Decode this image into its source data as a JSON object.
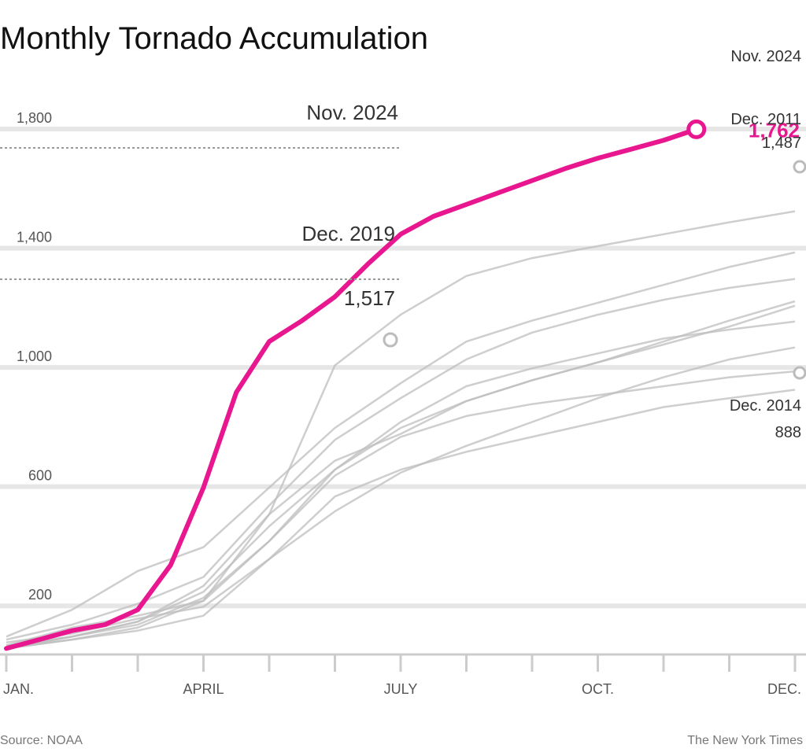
{
  "chart_data": {
    "type": "line",
    "title": "Monthly Tornado Accumulation",
    "xlabel": "",
    "ylabel": "",
    "xlim": [
      0,
      12
    ],
    "ylim": [
      0,
      1800
    ],
    "x_ticks": [
      {
        "value": 0,
        "label": "JAN."
      },
      {
        "value": 3,
        "label": "APRIL"
      },
      {
        "value": 6,
        "label": "JULY"
      },
      {
        "value": 9,
        "label": "OCT."
      },
      {
        "value": 11,
        "label": "DEC."
      }
    ],
    "minor_x_ticks": [
      1,
      2,
      4,
      5,
      7,
      8,
      10,
      12
    ],
    "y_ticks": [
      {
        "value": 200,
        "label": "200"
      },
      {
        "value": 600,
        "label": "600"
      },
      {
        "value": 1000,
        "label": "1,000"
      },
      {
        "value": 1400,
        "label": "1,400"
      },
      {
        "value": 1800,
        "label": "1,800"
      }
    ],
    "grid": true,
    "highlight_color": "#e8168f",
    "background_series_color": "#bdbdbd",
    "series": [
      {
        "x": [
          0,
          1,
          2,
          3,
          4,
          5,
          6,
          7,
          8,
          9,
          10,
          11,
          12
        ],
        "values": [
          30,
          90,
          130,
          180,
          470,
          970,
          1140,
          1270,
          1330,
          1370,
          1410,
          1450,
          1487
        ]
      },
      {
        "x": [
          0,
          1,
          2,
          3,
          4,
          5,
          6,
          7,
          8,
          9,
          10,
          11,
          12
        ],
        "values": [
          60,
          150,
          280,
          360,
          560,
          760,
          910,
          1050,
          1120,
          1180,
          1240,
          1300,
          1349
        ]
      },
      {
        "x": [
          0,
          1,
          2,
          3,
          4,
          5,
          6,
          7,
          8,
          9,
          10,
          11,
          12
        ],
        "values": [
          20,
          60,
          110,
          210,
          430,
          620,
          780,
          900,
          960,
          1010,
          1060,
          1090,
          1117
        ]
      },
      {
        "x": [
          0,
          1,
          2,
          3,
          4,
          5,
          6,
          7,
          8,
          9,
          10,
          11,
          12
        ],
        "values": [
          20,
          50,
          90,
          180,
          380,
          620,
          760,
          850,
          920,
          980,
          1040,
          1100,
          1170
        ]
      },
      {
        "x": [
          0,
          1,
          2,
          3,
          4,
          5,
          6,
          7,
          8,
          9,
          10,
          11,
          12
        ],
        "values": [
          30,
          60,
          100,
          190,
          380,
          600,
          730,
          800,
          840,
          870,
          900,
          930,
          950
        ]
      },
      {
        "x": [
          0,
          1,
          2,
          3,
          4,
          5,
          6,
          7,
          8,
          9,
          10,
          11,
          12
        ],
        "values": [
          40,
          70,
          120,
          160,
          320,
          480,
          610,
          700,
          780,
          860,
          930,
          990,
          1030
        ]
      },
      {
        "x": [
          0,
          1,
          2,
          3,
          4,
          5,
          6,
          7,
          8,
          9,
          10,
          11,
          12
        ],
        "values": [
          20,
          60,
          110,
          230,
          470,
          650,
          740,
          850,
          920,
          980,
          1050,
          1120,
          1185
        ]
      },
      {
        "x": [
          0,
          1,
          2,
          3,
          4,
          5,
          6,
          7,
          8,
          9,
          10,
          11,
          12
        ],
        "values": [
          20,
          50,
          80,
          130,
          320,
          530,
          620,
          680,
          730,
          780,
          830,
          860,
          888
        ]
      },
      {
        "x": [
          0,
          1,
          2,
          3,
          4,
          5,
          6,
          7,
          8,
          9,
          10,
          11,
          12
        ],
        "values": [
          50,
          100,
          170,
          260,
          500,
          720,
          860,
          990,
          1080,
          1140,
          1190,
          1230,
          1260
        ]
      }
    ],
    "highlight_series": {
      "name": "2024",
      "x": [
        0,
        0.5,
        1,
        1.5,
        2,
        2.5,
        3,
        3.5,
        4,
        4.5,
        5,
        5.5,
        6,
        6.5,
        7,
        7.5,
        8,
        8.5,
        9,
        9.5,
        10,
        10.5
      ],
      "values": [
        20,
        50,
        80,
        100,
        150,
        300,
        560,
        880,
        1050,
        1120,
        1200,
        1310,
        1410,
        1470,
        1510,
        1550,
        1590,
        1630,
        1665,
        1695,
        1725,
        1762
      ]
    },
    "annotations": [
      {
        "label": "Nov. 2024",
        "value": "1,762",
        "x": 10.5,
        "y": 1762
      },
      {
        "label": "Dec. 2019",
        "value": "1,517",
        "x": 5.3,
        "y": 1517
      },
      {
        "label": "Dec. 2014",
        "value": "888",
        "x": 12,
        "y": 888
      },
      {
        "label": "Dec. 2011",
        "value": "1,487",
        "x": 12,
        "y": 1650
      }
    ]
  },
  "page": {
    "title": "Monthly Tornado Accumulation",
    "source": "Source: NOAA",
    "credit": "The New York Times"
  }
}
